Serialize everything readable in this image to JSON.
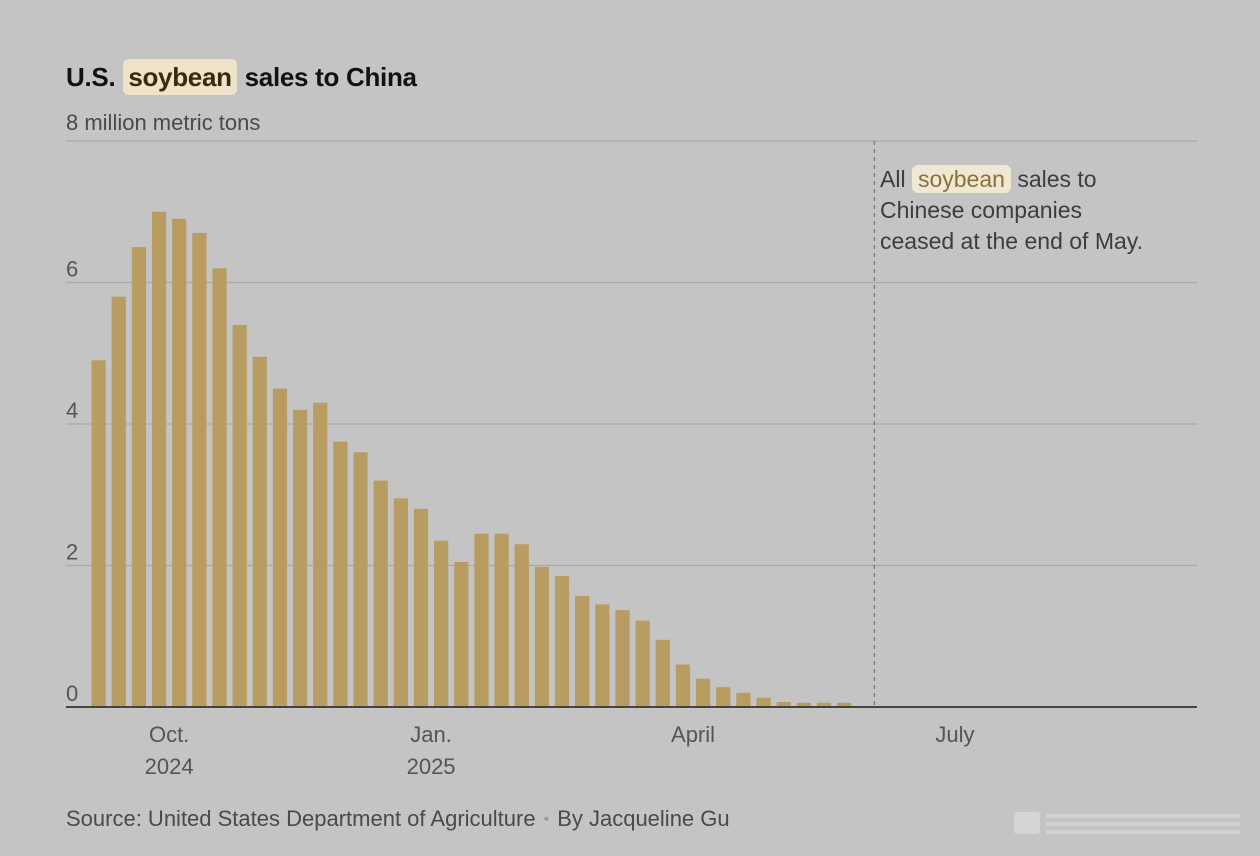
{
  "header": {
    "title_pre": "U.S.",
    "title_highlight": "soybean",
    "title_post": "sales to China",
    "subtitle": "8 million metric tons"
  },
  "annotation": {
    "pre": "All",
    "highlight": "soybean",
    "line1_post": "sales to",
    "line2": "Chinese companies",
    "line3": "ceased at the end of May."
  },
  "footer": {
    "source": "Source: United States Department of Agriculture",
    "separator": "•",
    "byline": "By Jacqueline Gu"
  },
  "chart_data": {
    "type": "bar",
    "title": "U.S. soybean sales to China",
    "ylabel": "8 million metric tons",
    "ylim": [
      0,
      8
    ],
    "yticks": [
      "0",
      "2",
      "4",
      "6"
    ],
    "xticks": [
      {
        "label": "Oct.",
        "sublabel": "2024",
        "week_index": 3.5
      },
      {
        "label": "Jan.",
        "sublabel": "2025",
        "week_index": 16.5
      },
      {
        "label": "April",
        "sublabel": "",
        "week_index": 29.5
      },
      {
        "label": "July",
        "sublabel": "",
        "week_index": 42.5
      }
    ],
    "total_weeks": 56,
    "cutoff_week_index": 38.5,
    "values": [
      4.9,
      5.8,
      6.5,
      7.0,
      6.9,
      6.7,
      6.2,
      5.4,
      4.95,
      4.5,
      4.2,
      4.3,
      3.75,
      3.6,
      3.2,
      2.95,
      2.8,
      2.35,
      2.05,
      2.45,
      2.45,
      2.3,
      1.98,
      1.85,
      1.57,
      1.45,
      1.37,
      1.22,
      0.95,
      0.6,
      0.4,
      0.28,
      0.2,
      0.13,
      0.07,
      0.06,
      0.06,
      0.06
    ],
    "bar_color": "#b89c62",
    "annotation": "All soybean sales to Chinese companies ceased at the end of May."
  }
}
